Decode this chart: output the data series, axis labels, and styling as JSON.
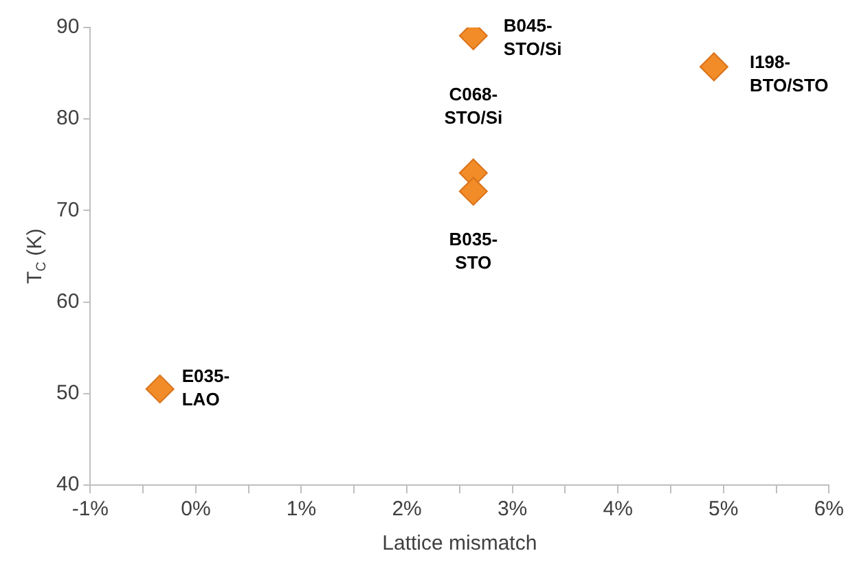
{
  "chart_data": {
    "type": "scatter",
    "xlabel": "Lattice mismatch",
    "ylabel": "T$_{C}$ (K)",
    "x": [
      -0.34,
      2.63,
      2.63,
      2.63,
      4.91
    ],
    "series": [
      {
        "color": "#f28c28",
        "values": [
          50.5,
          89.1,
          74.1,
          72.1,
          85.7
        ]
      }
    ],
    "marker": "diamond",
    "grid": false,
    "legend": false,
    "xlim": [
      -1,
      6
    ],
    "xticks": [
      {
        "value": -1,
        "label": "-1%"
      },
      {
        "value": -0.5,
        "label": null
      },
      {
        "value": 0,
        "label": "0%"
      },
      {
        "value": 0.5,
        "label": null
      },
      {
        "value": 1,
        "label": "1%"
      },
      {
        "value": 1.5,
        "label": null
      },
      {
        "value": 2,
        "label": "2%"
      },
      {
        "value": 2.5,
        "label": null
      },
      {
        "value": 3,
        "label": "3%"
      },
      {
        "value": 3.5,
        "label": null
      },
      {
        "value": 4,
        "label": "4%"
      },
      {
        "value": 4.5,
        "label": null
      },
      {
        "value": 5,
        "label": "5%"
      },
      {
        "value": 5.5,
        "label": null
      },
      {
        "value": 6,
        "label": "6%"
      }
    ],
    "ylim": [
      40,
      90
    ],
    "yticks": [
      40,
      50,
      60,
      70,
      80,
      90
    ],
    "annotations": [
      {
        "text": "E035-LAO",
        "x": -0.34,
        "y": 50.5
      },
      {
        "text": "B045-STO/Si",
        "x": 2.63,
        "y": 89.1
      },
      {
        "text": "C068-STO/Si",
        "x": 2.63,
        "y": 74.1
      },
      {
        "text": "B035-STO",
        "x": 2.63,
        "y": 72.1
      },
      {
        "text": "I198-BTO/STO",
        "x": 4.91,
        "y": 85.7
      }
    ]
  }
}
